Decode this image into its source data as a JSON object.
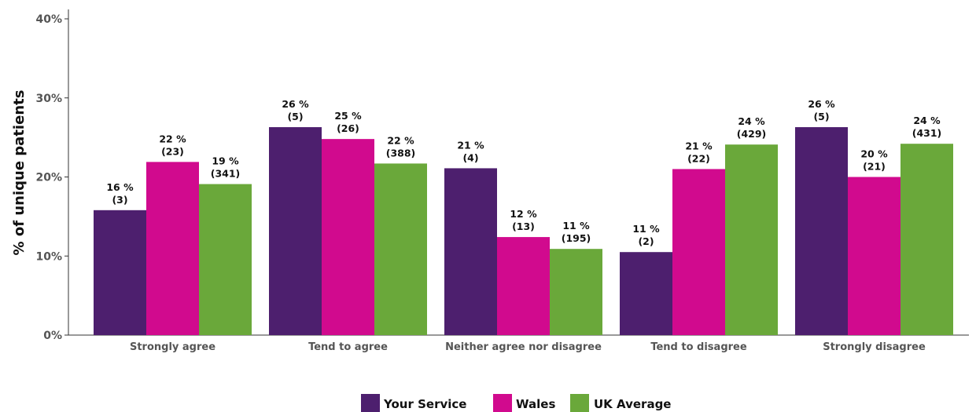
{
  "chart_data": {
    "type": "bar",
    "ylabel": "% of unique patients",
    "ylim": [
      0,
      40
    ],
    "yticks": [
      "0%",
      "10%",
      "20%",
      "30%",
      "40%"
    ],
    "categories": [
      "Strongly agree",
      "Tend to agree",
      "Neither agree nor disagree",
      "Tend to disagree",
      "Strongly disagree"
    ],
    "series": [
      {
        "name": "Your Service",
        "color": "#4d1f6e",
        "values": [
          15.8,
          26.3,
          21.1,
          10.5,
          26.3
        ],
        "labels": [
          "16 %",
          "26 %",
          "21 %",
          "11 %",
          "26 %"
        ],
        "counts": [
          "(3)",
          "(5)",
          "(4)",
          "(2)",
          "(5)"
        ]
      },
      {
        "name": "Wales",
        "color": "#d10a8e",
        "values": [
          21.9,
          24.8,
          12.4,
          21.0,
          20.0
        ],
        "labels": [
          "22 %",
          "25 %",
          "12 %",
          "21 %",
          "20 %"
        ],
        "counts": [
          "(23)",
          "(26)",
          "(13)",
          "(22)",
          "(21)"
        ]
      },
      {
        "name": "UK Average",
        "color": "#6aa83a",
        "values": [
          19.1,
          21.7,
          10.9,
          24.1,
          24.2
        ],
        "labels": [
          "19 %",
          "22 %",
          "11 %",
          "24 %",
          "24 %"
        ],
        "counts": [
          "(341)",
          "(388)",
          "(195)",
          "(429)",
          "(431)"
        ]
      }
    ],
    "legend_position": "bottom",
    "grid": false
  }
}
